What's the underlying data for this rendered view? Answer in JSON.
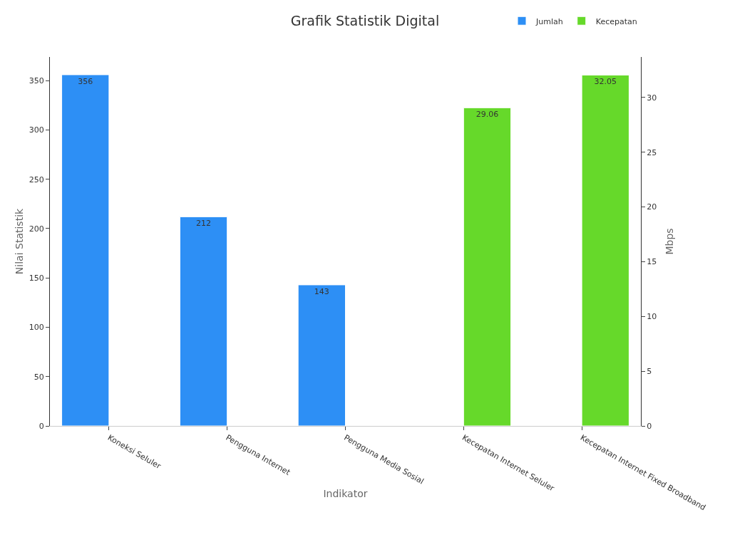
{
  "chart_data": {
    "type": "bar",
    "title": "Grafik Statistik Digital",
    "xlabel": "Indikator",
    "ylabel": "Nilai Statistik",
    "y2label": "Mbps",
    "categories": [
      "Koneksi Seluler",
      "Pengguna Internet",
      "Pengguna Media Sosial",
      "Kecepatan Internet Seluler",
      "Kecepatan Internet Fixed Broadband"
    ],
    "series": [
      {
        "name": "Jumlah",
        "color": "#2d8ff5",
        "values": [
          356,
          212,
          143,
          null,
          null
        ]
      },
      {
        "name": "Kecepatan",
        "color": "#66d92a",
        "axis": "y2",
        "values": [
          null,
          null,
          null,
          29.06,
          32.05
        ]
      }
    ],
    "ylim": [
      0,
      374
    ],
    "yticks": [
      0,
      50,
      100,
      150,
      200,
      250,
      300,
      350
    ],
    "y2lim": [
      0,
      33.7
    ],
    "y2ticks": [
      0,
      5,
      10,
      15,
      20,
      25,
      30
    ],
    "data_labels": true,
    "legend": "top right",
    "grid": false
  }
}
